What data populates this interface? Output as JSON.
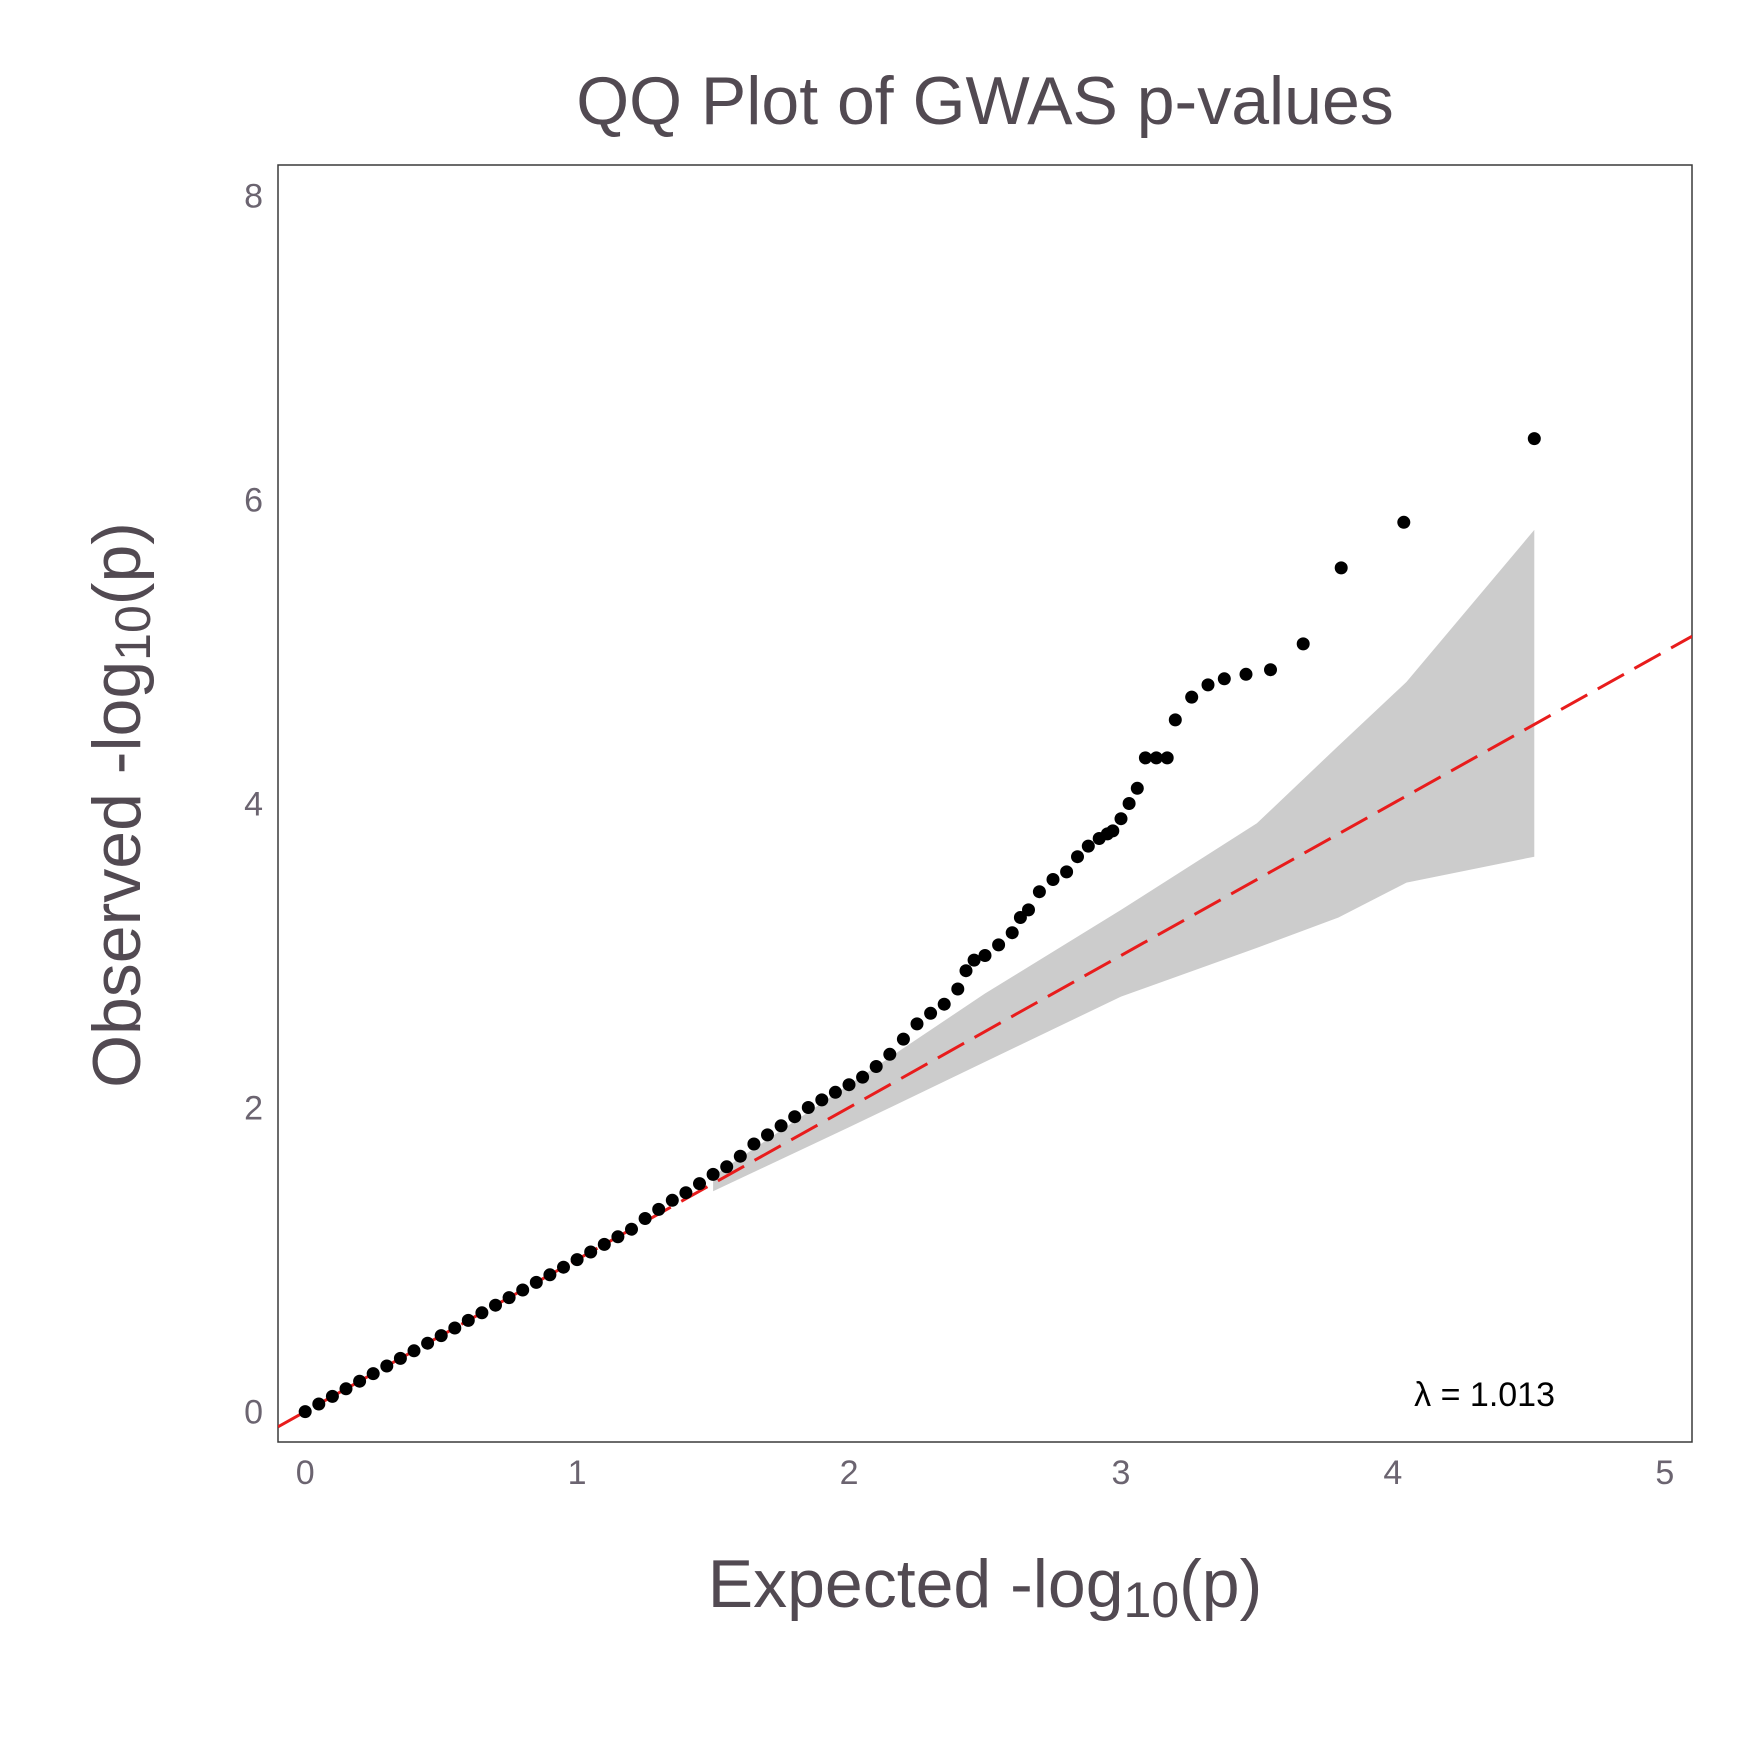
{
  "chart_data": {
    "type": "scatter",
    "title": "QQ Plot of GWAS p-values",
    "xlabel": {
      "main": "Expected -log",
      "sub": "10",
      "tail": "(p)"
    },
    "ylabel": {
      "main": "Observed -log",
      "sub": "10",
      "tail": "(p)"
    },
    "xlim": [
      -0.1,
      5.1
    ],
    "ylim": [
      -0.2,
      8.2
    ],
    "x_ticks": [
      "0",
      "1",
      "2",
      "3",
      "4",
      "5"
    ],
    "y_ticks": [
      "0",
      "2",
      "4",
      "6",
      "8"
    ],
    "grid": false,
    "annotation": "λ = 1.013",
    "colors": {
      "points": "#000000",
      "reference_line": "#e81c1c",
      "confidence_band": "#cccccc",
      "text": "#524a52"
    },
    "reference_line": {
      "slope": 1,
      "intercept": 0,
      "style": "dashed"
    },
    "confidence_band": {
      "x": [
        1.5,
        2.0,
        2.5,
        3.0,
        3.5,
        3.8,
        4.05,
        4.52
      ],
      "lower": [
        1.45,
        1.87,
        2.3,
        2.73,
        3.05,
        3.25,
        3.48,
        3.65
      ],
      "upper": [
        1.55,
        2.15,
        2.75,
        3.3,
        3.87,
        4.38,
        4.8,
        5.8
      ]
    },
    "points": {
      "x": [
        0.0,
        0.05,
        0.1,
        0.15,
        0.2,
        0.25,
        0.3,
        0.35,
        0.4,
        0.45,
        0.5,
        0.55,
        0.6,
        0.65,
        0.7,
        0.75,
        0.8,
        0.85,
        0.9,
        0.95,
        1.0,
        1.05,
        1.1,
        1.15,
        1.2,
        1.25,
        1.3,
        1.35,
        1.4,
        1.45,
        1.5,
        1.55,
        1.6,
        1.65,
        1.7,
        1.75,
        1.8,
        1.85,
        1.9,
        1.95,
        2.0,
        2.05,
        2.1,
        2.15,
        2.2,
        2.25,
        2.3,
        2.35,
        2.4,
        2.43,
        2.46,
        2.5,
        2.55,
        2.6,
        2.63,
        2.66,
        2.7,
        2.75,
        2.8,
        2.84,
        2.88,
        2.92,
        2.95,
        2.97,
        3.0,
        3.03,
        3.06,
        3.09,
        3.13,
        3.17,
        3.2,
        3.26,
        3.32,
        3.38,
        3.46,
        3.55,
        3.67,
        3.81,
        4.04,
        4.52
      ],
      "y": [
        0.0,
        0.05,
        0.1,
        0.15,
        0.2,
        0.25,
        0.3,
        0.35,
        0.4,
        0.45,
        0.5,
        0.55,
        0.6,
        0.65,
        0.7,
        0.75,
        0.8,
        0.85,
        0.9,
        0.95,
        1.0,
        1.05,
        1.1,
        1.15,
        1.2,
        1.27,
        1.33,
        1.39,
        1.44,
        1.5,
        1.56,
        1.61,
        1.68,
        1.76,
        1.82,
        1.88,
        1.94,
        2.0,
        2.05,
        2.1,
        2.15,
        2.2,
        2.27,
        2.35,
        2.45,
        2.55,
        2.62,
        2.68,
        2.78,
        2.9,
        2.97,
        3.0,
        3.07,
        3.15,
        3.25,
        3.3,
        3.42,
        3.5,
        3.55,
        3.65,
        3.72,
        3.77,
        3.8,
        3.82,
        3.9,
        4.0,
        4.1,
        4.3,
        4.3,
        4.3,
        4.55,
        4.7,
        4.78,
        4.82,
        4.85,
        4.88,
        5.05,
        5.55,
        5.85,
        6.4
      ]
    }
  }
}
